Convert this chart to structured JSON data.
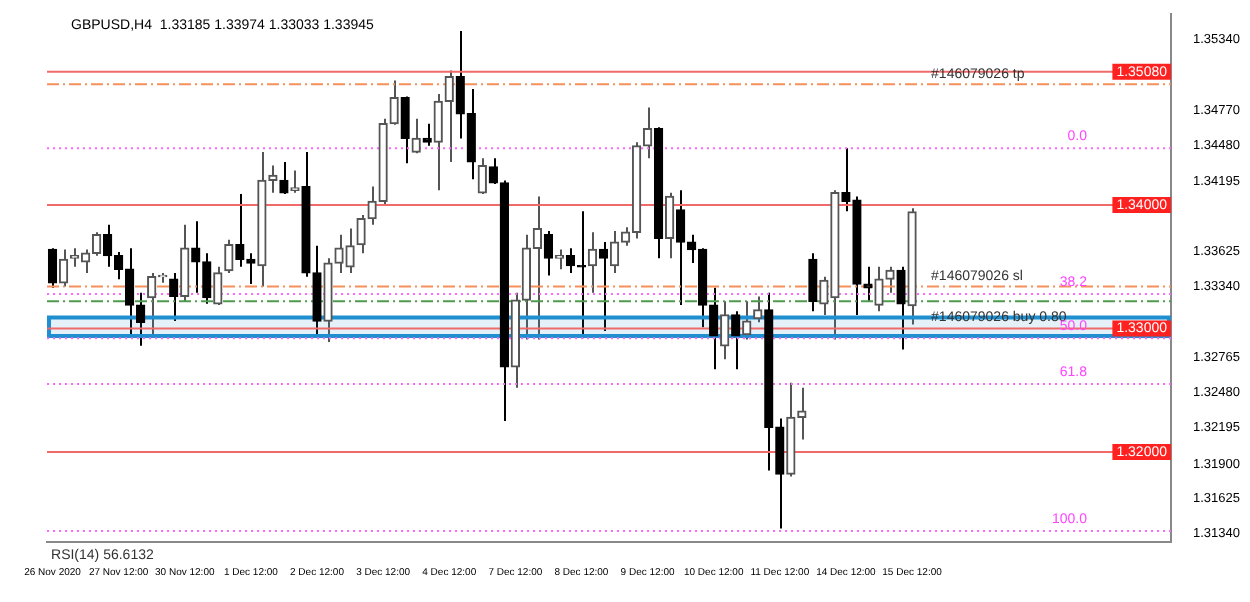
{
  "chart_data": {
    "type": "candlestick",
    "title": "GBPUSD,H4  1.33185 1.33974 1.33033 1.33945",
    "categories": [
      "26 Nov 2020",
      null,
      null,
      null,
      null,
      null,
      "27 Nov 12:00",
      null,
      null,
      null,
      null,
      null,
      "30 Nov 12:00",
      null,
      null,
      null,
      null,
      null,
      "1 Dec 12:00",
      null,
      null,
      null,
      null,
      null,
      "2 Dec 12:00",
      null,
      null,
      null,
      null,
      null,
      "3 Dec 12:00",
      null,
      null,
      null,
      null,
      null,
      "4 Dec 12:00",
      null,
      null,
      null,
      null,
      null,
      "7 Dec 12:00",
      null,
      null,
      null,
      null,
      null,
      "8 Dec 12:00",
      null,
      null,
      null,
      null,
      null,
      "9 Dec 12:00",
      null,
      null,
      null,
      null,
      null,
      "10 Dec 12:00",
      null,
      null,
      null,
      null,
      null,
      "11 Dec 12:00",
      null,
      null,
      null,
      null,
      null,
      "14 Dec 12:00",
      null,
      null,
      null,
      null,
      null,
      "15 Dec 12:00",
      null,
      null,
      null,
      null,
      null,
      null,
      null,
      null,
      null,
      null,
      null,
      null,
      null,
      null,
      null,
      null,
      null,
      null,
      null,
      null,
      null,
      null,
      null
    ],
    "ohlc": [
      [
        1.3364,
        1.3365,
        1.3333,
        1.3337
      ],
      [
        1.3337,
        1.3364,
        1.3334,
        1.3356
      ],
      [
        1.3357,
        1.3365,
        1.335,
        1.3359
      ],
      [
        1.3354,
        1.3364,
        1.3345,
        1.3361
      ],
      [
        1.3361,
        1.3378,
        1.3359,
        1.3376
      ],
      [
        1.3376,
        1.3384,
        1.335,
        1.3359
      ],
      [
        1.3359,
        1.3362,
        1.334,
        1.3348
      ],
      [
        1.3348,
        1.3365,
        1.3295,
        1.3319
      ],
      [
        1.3319,
        1.3329,
        1.3286,
        1.3305
      ],
      [
        1.3325,
        1.3345,
        1.3294,
        1.3342
      ],
      [
        1.3342,
        1.3345,
        1.3337,
        1.3343
      ],
      [
        1.334,
        1.3345,
        1.3306,
        1.3326
      ],
      [
        1.3326,
        1.3384,
        1.3322,
        1.3365
      ],
      [
        1.3365,
        1.3387,
        1.3329,
        1.3354
      ],
      [
        1.3354,
        1.3361,
        1.332,
        1.3325
      ],
      [
        1.332,
        1.335,
        1.3319,
        1.3345
      ],
      [
        1.3347,
        1.3372,
        1.3345,
        1.3368
      ],
      [
        1.3368,
        1.3409,
        1.335,
        1.3356
      ],
      [
        1.3356,
        1.3361,
        1.3336,
        1.3353
      ],
      [
        1.3351,
        1.3443,
        1.3334,
        1.342
      ],
      [
        1.342,
        1.3432,
        1.341,
        1.3424
      ],
      [
        1.342,
        1.3435,
        1.3409,
        1.341
      ],
      [
        1.3412,
        1.3428,
        1.341,
        1.3414
      ],
      [
        1.3415,
        1.3443,
        1.3342,
        1.3345
      ],
      [
        1.3345,
        1.3367,
        1.3295,
        1.3306
      ],
      [
        1.3306,
        1.3357,
        1.3289,
        1.3353
      ],
      [
        1.3353,
        1.3376,
        1.3345,
        1.3365
      ],
      [
        1.335,
        1.3381,
        1.3345,
        1.3367
      ],
      [
        1.3368,
        1.3392,
        1.3361,
        1.3389
      ],
      [
        1.3389,
        1.3415,
        1.3384,
        1.3403
      ],
      [
        1.3403,
        1.347,
        1.34,
        1.3466
      ],
      [
        1.3466,
        1.3501,
        1.3465,
        1.3487
      ],
      [
        1.3487,
        1.3488,
        1.3434,
        1.3454
      ],
      [
        1.3443,
        1.347,
        1.3442,
        1.3454
      ],
      [
        1.3454,
        1.3466,
        1.3448,
        1.3451
      ],
      [
        1.3451,
        1.349,
        1.3412,
        1.3484
      ],
      [
        1.3484,
        1.3509,
        1.3435,
        1.3504
      ],
      [
        1.3504,
        1.3541,
        1.3454,
        1.3474
      ],
      [
        1.3474,
        1.3494,
        1.3421,
        1.3435
      ],
      [
        1.341,
        1.3438,
        1.3409,
        1.3432
      ],
      [
        1.3431,
        1.3438,
        1.3417,
        1.3418
      ],
      [
        1.3418,
        1.342,
        1.3225,
        1.3269
      ],
      [
        1.3269,
        1.3329,
        1.3252,
        1.3323
      ],
      [
        1.3323,
        1.3376,
        1.3291,
        1.3365
      ],
      [
        1.3365,
        1.3407,
        1.3291,
        1.3381
      ],
      [
        1.3376,
        1.3379,
        1.3343,
        1.3357
      ],
      [
        1.3357,
        1.3364,
        1.3348,
        1.3359
      ],
      [
        1.3359,
        1.3365,
        1.3345,
        1.3351
      ],
      [
        1.3351,
        1.3395,
        1.3292,
        1.335
      ],
      [
        1.3351,
        1.3378,
        1.3329,
        1.3364
      ],
      [
        1.3364,
        1.337,
        1.3298,
        1.3357
      ],
      [
        1.3351,
        1.3379,
        1.3345,
        1.337
      ],
      [
        1.337,
        1.3382,
        1.3367,
        1.3378
      ],
      [
        1.3378,
        1.3451,
        1.3373,
        1.3448
      ],
      [
        1.3448,
        1.3479,
        1.3438,
        1.3462
      ],
      [
        1.3462,
        1.3463,
        1.3357,
        1.3373
      ],
      [
        1.3373,
        1.341,
        1.3357,
        1.3407
      ],
      [
        1.3396,
        1.3412,
        1.3319,
        1.337
      ],
      [
        1.337,
        1.3376,
        1.3353,
        1.3364
      ],
      [
        1.3364,
        1.3365,
        1.3301,
        1.3319
      ],
      [
        1.3319,
        1.3333,
        1.3267,
        1.3294
      ],
      [
        1.3286,
        1.3322,
        1.3275,
        1.3311
      ],
      [
        1.3311,
        1.3314,
        1.3267,
        1.3294
      ],
      [
        1.3295,
        1.3322,
        1.3291,
        1.3306
      ],
      [
        1.3308,
        1.3326,
        1.3305,
        1.3315
      ],
      [
        1.3315,
        1.3329,
        1.3185,
        1.322
      ],
      [
        1.322,
        1.3227,
        1.3138,
        1.3182
      ],
      [
        1.3182,
        1.3256,
        1.318,
        1.3228
      ],
      [
        1.3228,
        1.3252,
        1.321,
        1.3233
      ],
      [
        1.3356,
        1.3361,
        1.3314,
        1.3322
      ],
      [
        1.332,
        1.3342,
        1.3311,
        1.3339
      ],
      [
        1.3325,
        1.3412,
        1.3291,
        1.341
      ],
      [
        1.341,
        1.3446,
        1.3395,
        1.3403
      ],
      [
        1.3404,
        1.3407,
        1.3311,
        1.3336
      ],
      [
        1.3336,
        1.335,
        1.3322,
        1.3333
      ],
      [
        1.3319,
        1.335,
        1.3314,
        1.334
      ],
      [
        1.334,
        1.335,
        1.3329,
        1.3347
      ],
      [
        1.3347,
        1.335,
        1.3283,
        1.332
      ],
      [
        1.33185,
        1.33974,
        1.33033,
        1.33945
      ],
      null,
      null,
      null,
      null,
      null,
      null,
      null,
      null,
      null,
      null,
      null,
      null,
      null,
      null,
      null,
      null,
      null,
      null,
      null,
      null,
      null,
      null,
      null
    ],
    "colors": [
      "#000000",
      "#555555",
      "#555555",
      "#555555",
      "#555555",
      "#000000",
      "#000000",
      "#000000",
      "#000000",
      "#555555",
      "#555555",
      "#000000",
      "#555555",
      "#000000",
      "#000000",
      "#555555",
      "#555555",
      "#000000",
      "#000000",
      "#555555",
      "#555555",
      "#000000",
      "#555555",
      "#000000",
      "#000000",
      "#555555",
      "#555555",
      "#555555",
      "#555555",
      "#555555",
      "#555555",
      "#555555",
      "#000000",
      "#555555",
      "#000000",
      "#555555",
      "#555555",
      "#000000",
      "#000000",
      "#555555",
      "#000000",
      "#000000",
      "#555555",
      "#555555",
      "#555555",
      "#000000",
      "#555555",
      "#000000",
      "#000000",
      "#555555",
      "#000000",
      "#555555",
      "#555555",
      "#555555",
      "#555555",
      "#000000",
      "#555555",
      "#000000",
      "#000000",
      "#000000",
      "#000000",
      "#555555",
      "#000000",
      "#555555",
      "#555555",
      "#000000",
      "#000000",
      "#555555",
      "#555555",
      "#000000",
      "#555555",
      "#555555",
      "#000000",
      "#000000",
      "#000000",
      "#555555",
      "#555555",
      "#000000",
      "#555555",
      null,
      null,
      null,
      null,
      null,
      null,
      null,
      null,
      null,
      null,
      null,
      null,
      null,
      null,
      null,
      null,
      null,
      null,
      null,
      null,
      null,
      null,
      null
    ],
    "ylim": [
      1.3127,
      1.3555
    ],
    "yticks": [
      {
        "value": 1.3534,
        "label": "1.35340"
      },
      {
        "value": 1.3477,
        "label": "1.34770"
      },
      {
        "value": 1.3448,
        "label": "1.34480"
      },
      {
        "value": 1.34195,
        "label": "1.34195"
      },
      {
        "value": 1.33625,
        "label": "1.33625"
      },
      {
        "value": 1.3334,
        "label": "1.33340"
      },
      {
        "value": 1.32765,
        "label": "1.32765"
      },
      {
        "value": 1.3248,
        "label": "1.32480"
      },
      {
        "value": 1.32195,
        "label": "1.32195"
      },
      {
        "value": 1.319,
        "label": "1.31900"
      },
      {
        "value": 1.31625,
        "label": "1.31625"
      },
      {
        "value": 1.3134,
        "label": "1.31340"
      }
    ],
    "ref_lines": [
      {
        "axis": "y",
        "value": 1.3508,
        "label": "1.35080",
        "color": "#f06a6a",
        "line_style": "solid"
      },
      {
        "axis": "y",
        "value": 1.34,
        "label": "1.34000",
        "color": "#f06a6a",
        "line_style": "solid"
      },
      {
        "axis": "y",
        "value": 1.33,
        "label": "1.33000",
        "color": "#f06a6a",
        "line_style": "solid"
      },
      {
        "axis": "y",
        "value": 1.32,
        "label": "1.32000",
        "color": "#f06a6a",
        "line_style": "solid"
      },
      {
        "axis": "y",
        "value": 1.3498,
        "label": "#146079026 tp",
        "color": "#f5905a",
        "line_style": "dashed"
      },
      {
        "axis": "y",
        "value": 1.3334,
        "label": "#146079026 sl",
        "color": "#f5905a",
        "line_style": "dashed"
      },
      {
        "axis": "y",
        "value": 1.3322,
        "label": "#146079026 buy 0.80",
        "color": "#4f9a4f",
        "line_style": "dashed"
      },
      {
        "axis": "y",
        "value": 1.3446,
        "color": "#ff66ff",
        "line_style": "dotted"
      },
      {
        "axis": "y",
        "value": 1.3328,
        "color": "#ff66ff",
        "line_style": "dotted"
      },
      {
        "axis": "y",
        "value": 1.3292,
        "color": "#ff66ff",
        "line_style": "dotted"
      },
      {
        "axis": "y",
        "value": 1.3255,
        "color": "#ff66ff",
        "line_style": "dotted"
      },
      {
        "axis": "y",
        "value": 1.3136,
        "color": "#ff66ff",
        "line_style": "dotted"
      }
    ],
    "bands": [
      {
        "axis": "y",
        "from": 1.3294,
        "to": 1.3309,
        "color": "#1f8fd0"
      }
    ],
    "annotations": [
      "RSI(14) 56.6132",
      {
        "text": "0.0",
        "y": 1.3446
      },
      {
        "text": "38.2",
        "y": 1.3328
      },
      {
        "text": "50.0",
        "y": 1.3292
      },
      {
        "text": "61.8",
        "y": 1.3255
      },
      {
        "text": "100.0",
        "y": 1.3136
      }
    ],
    "grid": false,
    "legend": false
  }
}
